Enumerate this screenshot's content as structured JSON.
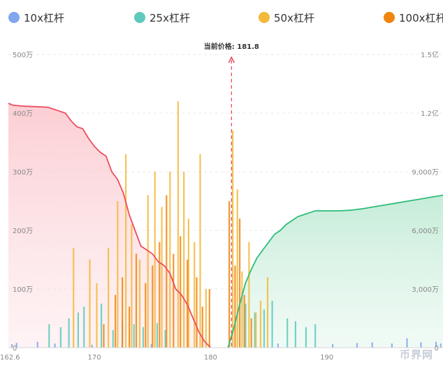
{
  "legend": {
    "items": [
      {
        "label": "10x杠杆",
        "color": "#7fa6ee"
      },
      {
        "label": "25x杠杆",
        "color": "#5fc9bc"
      },
      {
        "label": "50x杠杆",
        "color": "#f3b93a"
      },
      {
        "label": "100x杠杆",
        "color": "#f0850f"
      }
    ]
  },
  "watermark": "币界网",
  "chart_data": {
    "type": "bar",
    "title": "",
    "current_price": {
      "label": "当前价格: 181.8",
      "value": 181.8
    },
    "x_axis": {
      "min": 162.6,
      "max": 200,
      "ticks": [
        "162.6",
        "170",
        "180",
        "190"
      ],
      "tick_values": [
        162.6,
        170,
        180,
        190
      ]
    },
    "y_left": {
      "min": 0,
      "max": 5000000,
      "ticks": [
        "0",
        "100万",
        "200万",
        "300万",
        "400万",
        "500万"
      ],
      "tick_values": [
        0,
        1000000,
        2000000,
        3000000,
        4000000,
        5000000
      ]
    },
    "y_right": {
      "min": 0,
      "max": 150000000,
      "ticks": [
        "0",
        "3,000万",
        "6,000万",
        "9,000万",
        "1.2亿",
        "1.5亿"
      ],
      "tick_values": [
        0,
        30000000,
        60000000,
        90000000,
        120000000,
        150000000
      ]
    },
    "cumulative_short": {
      "color": "#ef4d5e",
      "x": [
        162.6,
        163.0,
        164.0,
        165.0,
        166.0,
        167.0,
        167.5,
        168.0,
        168.5,
        169.0,
        169.5,
        170.0,
        170.5,
        171.0,
        171.5,
        172.0,
        172.5,
        173.0,
        173.5,
        174.0,
        174.5,
        175.0,
        175.5,
        176.0,
        176.5,
        177.0,
        177.5,
        178.0,
        178.5,
        179.0,
        179.5,
        180.0
      ],
      "values": [
        125000000,
        124000000,
        123500000,
        123300000,
        123000000,
        121000000,
        120000000,
        116000000,
        113000000,
        112000000,
        107000000,
        103000000,
        100000000,
        98000000,
        90000000,
        86000000,
        79000000,
        68000000,
        60000000,
        52000000,
        50000000,
        48000000,
        44000000,
        42000000,
        38000000,
        30000000,
        27000000,
        22000000,
        15000000,
        8000000,
        3000000,
        0
      ]
    },
    "cumulative_long": {
      "color": "#2ebd7a",
      "x": [
        181.5,
        182.0,
        182.5,
        183.0,
        183.5,
        184.0,
        184.5,
        185.0,
        185.5,
        186.0,
        186.5,
        187.0,
        187.5,
        188.0,
        188.5,
        189.0,
        189.5,
        190.0,
        191.0,
        192.0,
        193.0,
        194.0,
        195.0,
        196.0,
        197.0,
        198.0,
        199.0,
        200.0
      ],
      "values": [
        0,
        10000000,
        22000000,
        33000000,
        40000000,
        46000000,
        50000000,
        54000000,
        58000000,
        60000000,
        63000000,
        65000000,
        67000000,
        68000000,
        69000000,
        70000000,
        70000000,
        70000000,
        70000000,
        70300000,
        71000000,
        72000000,
        73000000,
        74000000,
        75000000,
        76000000,
        77000000,
        78000000
      ]
    },
    "series": [
      {
        "name": "10x杠杆",
        "color": "#7fa6ee",
        "x": [
          162.9,
          163.3,
          165.1,
          166.6,
          169.8,
          174.9,
          185.8,
          190.5,
          192.6,
          193.9,
          195.6,
          196.9,
          198.1,
          199.4,
          199.8
        ],
        "values": [
          60000,
          80000,
          100000,
          70000,
          50000,
          60000,
          70000,
          60000,
          80000,
          90000,
          70000,
          160000,
          90000,
          100000,
          70000
        ]
      },
      {
        "name": "25x杠杆",
        "color": "#5fc9bc",
        "x": [
          166.1,
          167.1,
          167.8,
          168.6,
          169.1,
          170.6,
          171.6,
          172.4,
          173.4,
          174.2,
          175.4,
          176.1,
          183.0,
          183.8,
          184.6,
          185.3,
          186.6,
          187.3,
          188.2,
          189.0
        ],
        "values": [
          400000,
          350000,
          500000,
          600000,
          700000,
          750000,
          300000,
          450000,
          400000,
          350000,
          420000,
          300000,
          750000,
          600000,
          650000,
          800000,
          500000,
          450000,
          350000,
          400000
        ]
      },
      {
        "name": "50x杠杆",
        "color": "#f3b93a",
        "x": [
          168.2,
          169.6,
          170.2,
          171.2,
          172.0,
          172.7,
          173.2,
          173.9,
          174.6,
          175.2,
          175.8,
          176.5,
          177.2,
          177.7,
          178.1,
          178.6,
          179.1,
          179.6,
          181.9,
          182.3,
          182.7,
          183.3,
          183.9,
          184.3,
          184.9
        ],
        "values": [
          1700000,
          1500000,
          1100000,
          1700000,
          2500000,
          3300000,
          2100000,
          1500000,
          2600000,
          3000000,
          2400000,
          3000000,
          4200000,
          3000000,
          2200000,
          1800000,
          3300000,
          1000000,
          3700000,
          2700000,
          1300000,
          1800000,
          600000,
          800000,
          1200000
        ]
      },
      {
        "name": "100x杠杆",
        "color": "#f0850f",
        "x": [
          170.8,
          171.8,
          172.4,
          173.0,
          173.6,
          174.4,
          175.0,
          175.6,
          176.2,
          176.8,
          177.4,
          178.0,
          178.8,
          179.3,
          179.9,
          181.6,
          182.1,
          182.5,
          182.9,
          183.5
        ],
        "values": [
          400000,
          900000,
          1200000,
          700000,
          1600000,
          1100000,
          1400000,
          1800000,
          2600000,
          1600000,
          1900000,
          1500000,
          1200000,
          700000,
          1000000,
          2500000,
          1400000,
          2200000,
          900000,
          500000
        ]
      }
    ]
  }
}
